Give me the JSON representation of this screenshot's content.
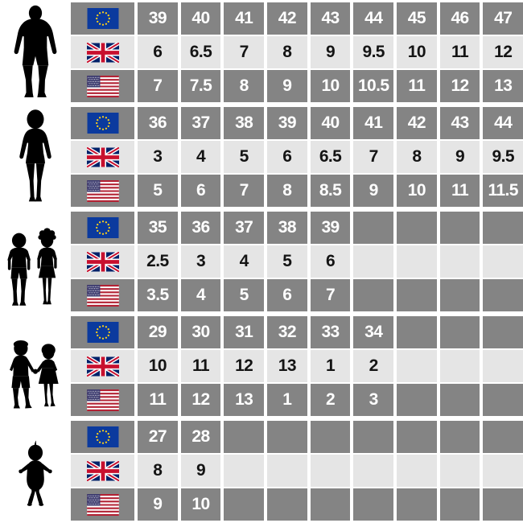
{
  "colors": {
    "row_dark": "#848484",
    "row_light": "#e5e5e5",
    "text_on_dark": "#ffffff",
    "text_on_light": "#141414",
    "background": "#ffffff",
    "silhouette": "#000000",
    "eu_flag_blue": "#0b3a9e",
    "eu_flag_star_yellow": "#ffd117",
    "uk_flag_blue": "#012169",
    "uk_flag_red": "#c8102e",
    "us_flag_red": "#b22234",
    "us_flag_blue": "#3c3b6e"
  },
  "layout": {
    "columns": 9,
    "rows": [
      {
        "key": "eu",
        "flag": "eu-flag",
        "style": "dark"
      },
      {
        "key": "uk",
        "flag": "uk-flag",
        "style": "light"
      },
      {
        "key": "us",
        "flag": "us-flag",
        "style": "dark"
      }
    ]
  },
  "chart_data": {
    "type": "table",
    "title": "",
    "legend": "Rows are identified by flag icons: EU (European Union), UK (United Kingdom), US (United States). Row groups are identified by silhouettes: man, woman, kids, small kids, baby.",
    "groups": [
      {
        "category": "men",
        "icon": "man-silhouette",
        "eu": [
          39,
          40,
          41,
          42,
          43,
          44,
          45,
          46,
          47
        ],
        "uk": [
          6,
          6.5,
          7,
          8,
          9,
          9.5,
          10,
          11,
          12
        ],
        "us": [
          7,
          7.5,
          8,
          9,
          10,
          10.5,
          11,
          12,
          13
        ]
      },
      {
        "category": "women",
        "icon": "woman-silhouette",
        "eu": [
          36,
          37,
          38,
          39,
          40,
          41,
          42,
          43,
          44
        ],
        "uk": [
          3,
          4,
          5,
          6,
          6.5,
          7,
          8,
          9,
          9.5
        ],
        "us": [
          5,
          6,
          7,
          8,
          8.5,
          9,
          10,
          11,
          11.5
        ]
      },
      {
        "category": "kids",
        "icon": "kids-silhouette",
        "eu": [
          35,
          36,
          37,
          38,
          39
        ],
        "uk": [
          2.5,
          3,
          4,
          5,
          6
        ],
        "us": [
          3.5,
          4,
          5,
          6,
          7
        ]
      },
      {
        "category": "small-kids",
        "icon": "small-kids-silhouette",
        "eu": [
          29,
          30,
          31,
          32,
          33,
          34
        ],
        "uk": [
          10,
          11,
          12,
          13,
          1,
          2
        ],
        "us": [
          11,
          12,
          13,
          1,
          2,
          3
        ]
      },
      {
        "category": "baby",
        "icon": "baby-silhouette",
        "eu": [
          27,
          28
        ],
        "uk": [
          8,
          9
        ],
        "us": [
          9,
          10
        ]
      }
    ]
  }
}
